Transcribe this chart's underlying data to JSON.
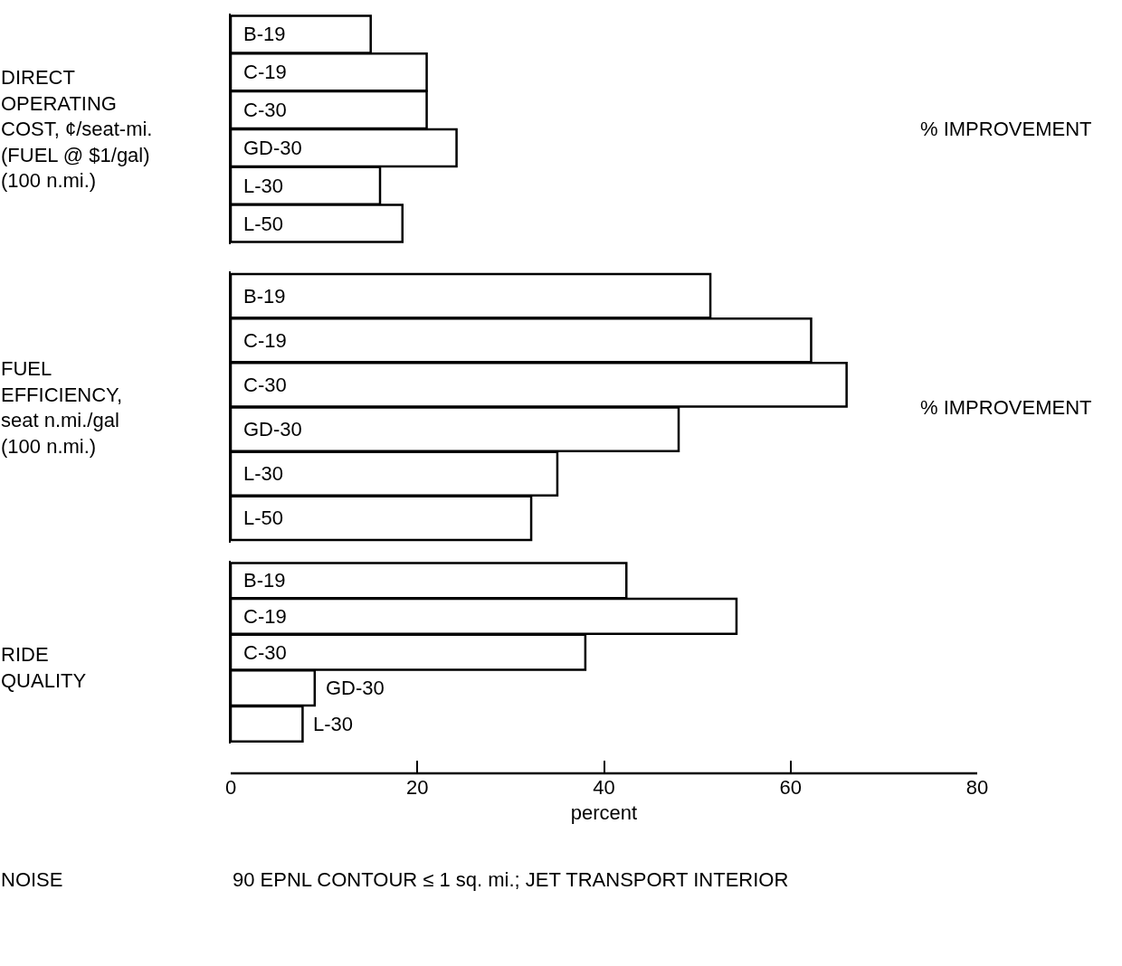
{
  "chart_data": [
    {
      "type": "bar",
      "orientation": "horizontal",
      "ylabel": "DIRECT\nOPERATING\nCOST, ¢/seat-mi.\n(FUEL @ $1/gal)\n(100 n.mi.)",
      "annotations": [
        "% IMPROVEMENT"
      ],
      "categories": [
        "B-19",
        "C-19",
        "C-30",
        "GD-30",
        "L-30",
        "L-50"
      ],
      "values": [
        15,
        21,
        21,
        24.2,
        16,
        18.4
      ],
      "color": "#ffffff",
      "xlim": [
        0,
        80
      ],
      "tick_labels": false,
      "grid": false,
      "legend": false
    },
    {
      "type": "bar",
      "orientation": "horizontal",
      "ylabel": "FUEL\nEFFICIENCY,\nseat n.mi./gal\n(100 n.mi.)",
      "annotations": [
        "% IMPROVEMENT"
      ],
      "categories": [
        "B-19",
        "C-19",
        "C-30",
        "GD-30",
        "L-30",
        "L-50"
      ],
      "values": [
        51.4,
        62.2,
        66,
        48,
        35,
        32.2
      ],
      "color": "#ffffff",
      "xlim": [
        0,
        80
      ],
      "tick_labels": false,
      "grid": false,
      "legend": false
    },
    {
      "type": "bar",
      "orientation": "horizontal",
      "ylabel": "RIDE\nQUALITY",
      "xlabel": "percent",
      "annotations": [
        "NOISE",
        "90 EPNL CONTOUR ≤ 1 sq. mi.; JET TRANSPORT INTERIOR"
      ],
      "categories": [
        "B-19",
        "C-19",
        "C-30",
        "GD-30",
        "L-30"
      ],
      "values": [
        42.4,
        54.2,
        38,
        9,
        7.7
      ],
      "color": "#ffffff",
      "xlim": [
        0,
        80
      ],
      "xticks": [
        0,
        20,
        40,
        60,
        80
      ],
      "tick_labels": "x",
      "grid": false,
      "legend": false
    }
  ]
}
